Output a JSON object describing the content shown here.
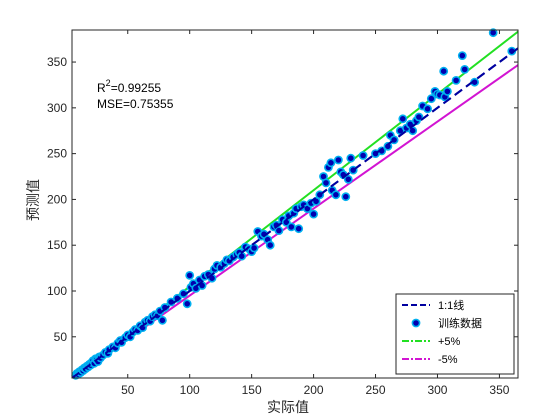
{
  "chart_data": {
    "type": "scatter",
    "xlabel": "实际值",
    "ylabel": "预测值",
    "xlim": [
      5,
      365
    ],
    "ylim": [
      5,
      385
    ],
    "xticks": [
      50,
      100,
      150,
      200,
      250,
      300,
      350
    ],
    "yticks": [
      50,
      100,
      150,
      200,
      250,
      300,
      350
    ],
    "grid": false,
    "legend_position": "bottom-right",
    "annotations": {
      "r2_label": "R",
      "r2_sup": "2",
      "r2_value": "=0.99255",
      "mse": "MSE=0.75355"
    },
    "series": [
      {
        "name": "1:1线",
        "kind": "line",
        "color": "#0000a0",
        "dash": "dashed",
        "x": [
          5,
          365
        ],
        "y": [
          5,
          365
        ]
      },
      {
        "name": "训练数据",
        "kind": "scatter",
        "edge_color": "#00b0f0",
        "fill_color": "#0000b0",
        "points": [
          [
            8,
            8
          ],
          [
            9,
            10
          ],
          [
            10,
            9
          ],
          [
            11,
            12
          ],
          [
            12,
            11
          ],
          [
            13,
            14
          ],
          [
            14,
            13
          ],
          [
            15,
            16
          ],
          [
            16,
            15
          ],
          [
            17,
            18
          ],
          [
            18,
            17
          ],
          [
            19,
            20
          ],
          [
            20,
            19
          ],
          [
            21,
            22
          ],
          [
            22,
            24
          ],
          [
            23,
            21
          ],
          [
            24,
            26
          ],
          [
            25,
            25
          ],
          [
            26,
            23
          ],
          [
            27,
            28
          ],
          [
            28,
            27
          ],
          [
            30,
            30
          ],
          [
            32,
            33
          ],
          [
            34,
            32
          ],
          [
            35,
            36
          ],
          [
            38,
            39
          ],
          [
            40,
            38
          ],
          [
            42,
            43
          ],
          [
            44,
            46
          ],
          [
            45,
            44
          ],
          [
            48,
            49
          ],
          [
            50,
            52
          ],
          [
            52,
            50
          ],
          [
            54,
            55
          ],
          [
            56,
            58
          ],
          [
            58,
            57
          ],
          [
            60,
            62
          ],
          [
            62,
            60
          ],
          [
            64,
            66
          ],
          [
            66,
            68
          ],
          [
            68,
            67
          ],
          [
            70,
            72
          ],
          [
            72,
            74
          ],
          [
            74,
            73
          ],
          [
            76,
            78
          ],
          [
            78,
            68
          ],
          [
            80,
            82
          ],
          [
            85,
            88
          ],
          [
            90,
            92
          ],
          [
            95,
            97
          ],
          [
            98,
            86
          ],
          [
            100,
            117
          ],
          [
            101,
            104
          ],
          [
            103,
            108
          ],
          [
            105,
            103
          ],
          [
            108,
            112
          ],
          [
            110,
            106
          ],
          [
            112,
            116
          ],
          [
            115,
            118
          ],
          [
            118,
            114
          ],
          [
            120,
            124
          ],
          [
            122,
            128
          ],
          [
            125,
            126
          ],
          [
            128,
            130
          ],
          [
            130,
            134
          ],
          [
            132,
            133
          ],
          [
            135,
            137
          ],
          [
            138,
            140
          ],
          [
            140,
            142
          ],
          [
            142,
            138
          ],
          [
            145,
            148
          ],
          [
            148,
            146
          ],
          [
            150,
            143
          ],
          [
            152,
            147
          ],
          [
            155,
            165
          ],
          [
            158,
            160
          ],
          [
            160,
            162
          ],
          [
            163,
            156
          ],
          [
            165,
            150
          ],
          [
            168,
            170
          ],
          [
            170,
            172
          ],
          [
            172,
            166
          ],
          [
            175,
            178
          ],
          [
            178,
            175
          ],
          [
            180,
            182
          ],
          [
            182,
            170
          ],
          [
            184,
            185
          ],
          [
            186,
            190
          ],
          [
            188,
            168
          ],
          [
            190,
            192
          ],
          [
            192,
            194
          ],
          [
            195,
            190
          ],
          [
            198,
            196
          ],
          [
            200,
            184
          ],
          [
            202,
            198
          ],
          [
            205,
            205
          ],
          [
            208,
            225
          ],
          [
            210,
            218
          ],
          [
            212,
            235
          ],
          [
            214,
            240
          ],
          [
            215,
            210
          ],
          [
            218,
            205
          ],
          [
            220,
            243
          ],
          [
            222,
            230
          ],
          [
            224,
            227
          ],
          [
            226,
            203
          ],
          [
            228,
            222
          ],
          [
            230,
            245
          ],
          [
            232,
            232
          ],
          [
            240,
            248
          ],
          [
            250,
            250
          ],
          [
            255,
            253
          ],
          [
            260,
            258
          ],
          [
            262,
            270
          ],
          [
            265,
            265
          ],
          [
            270,
            275
          ],
          [
            272,
            288
          ],
          [
            275,
            278
          ],
          [
            278,
            282
          ],
          [
            280,
            275
          ],
          [
            283,
            286
          ],
          [
            285,
            290
          ],
          [
            288,
            302
          ],
          [
            292,
            299
          ],
          [
            295,
            310
          ],
          [
            298,
            318
          ],
          [
            300,
            315
          ],
          [
            302,
            314
          ],
          [
            305,
            340
          ],
          [
            306,
            312
          ],
          [
            308,
            318
          ],
          [
            315,
            330
          ],
          [
            320,
            357
          ],
          [
            322,
            342
          ],
          [
            330,
            328
          ],
          [
            345,
            382
          ],
          [
            360,
            362
          ]
        ]
      },
      {
        "name": "+5%",
        "kind": "line",
        "color": "#22e022",
        "dash": "solid",
        "x": [
          5,
          365
        ],
        "y": [
          5.25,
          383.25
        ]
      },
      {
        "name": "-5%",
        "kind": "line",
        "color": "#d214d2",
        "dash": "solid",
        "x": [
          5,
          365
        ],
        "y": [
          4.75,
          346.75
        ]
      }
    ]
  }
}
